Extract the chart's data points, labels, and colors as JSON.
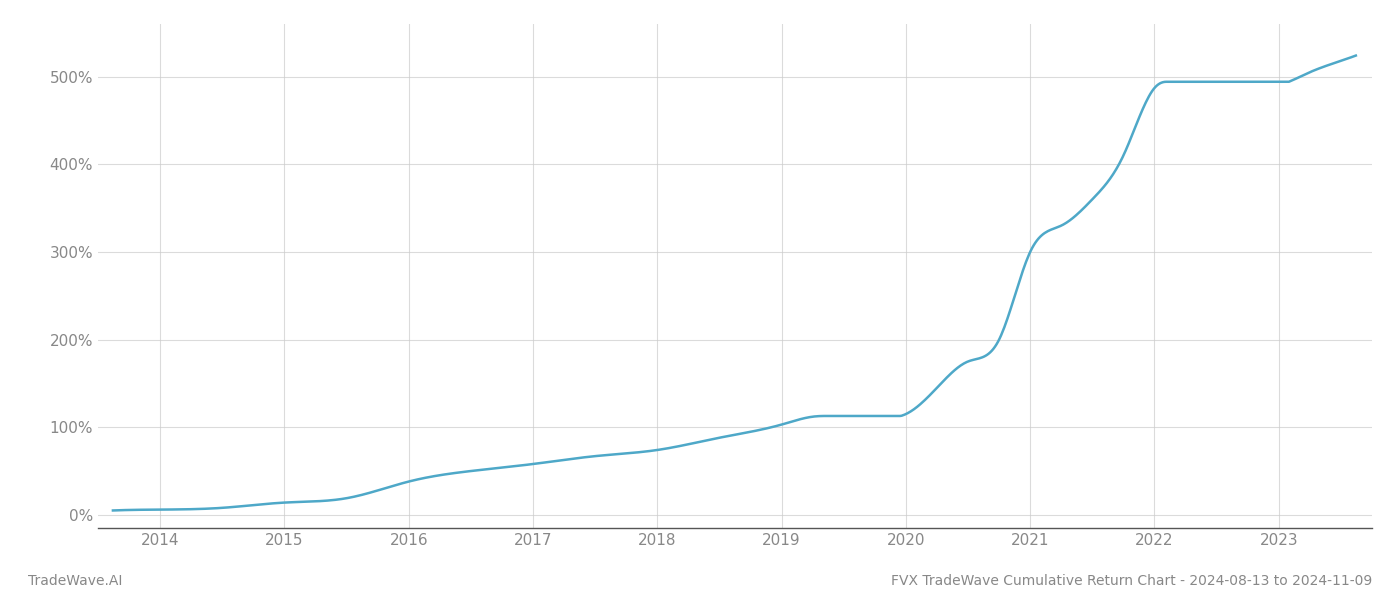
{
  "title": "FVX TradeWave Cumulative Return Chart - 2024-08-13 to 2024-11-09",
  "left_label": "TradeWave.AI",
  "line_color": "#4ea8c8",
  "background_color": "#ffffff",
  "grid_color": "#cccccc",
  "x_years": [
    2014,
    2015,
    2016,
    2017,
    2018,
    2019,
    2020,
    2021,
    2022,
    2023
  ],
  "key_x": [
    2013.62,
    2014.0,
    2014.5,
    2015.0,
    2015.5,
    2016.0,
    2016.5,
    2017.0,
    2017.5,
    2018.0,
    2018.5,
    2019.0,
    2019.25,
    2019.5,
    2019.75,
    2020.0,
    2020.25,
    2020.5,
    2020.75,
    2021.0,
    2021.25,
    2021.5,
    2021.75,
    2022.0,
    2022.25,
    2022.5,
    2022.75,
    2023.0,
    2023.25,
    2023.5,
    2023.62
  ],
  "key_y": [
    5,
    6,
    8,
    14,
    19,
    38,
    50,
    58,
    67,
    74,
    88,
    103,
    112,
    112,
    111,
    115,
    145,
    175,
    200,
    300,
    330,
    360,
    410,
    487,
    487,
    487,
    487,
    490,
    505,
    518,
    524
  ],
  "ylim": [
    -15,
    560
  ],
  "yticks": [
    0,
    100,
    200,
    300,
    400,
    500
  ],
  "xlim": [
    2013.5,
    2023.75
  ],
  "figsize": [
    14.0,
    6.0
  ],
  "dpi": 100,
  "title_fontsize": 10,
  "tick_fontsize": 11,
  "label_fontsize": 10,
  "line_width": 1.8,
  "grid_alpha": 0.7,
  "grid_linewidth": 0.8
}
